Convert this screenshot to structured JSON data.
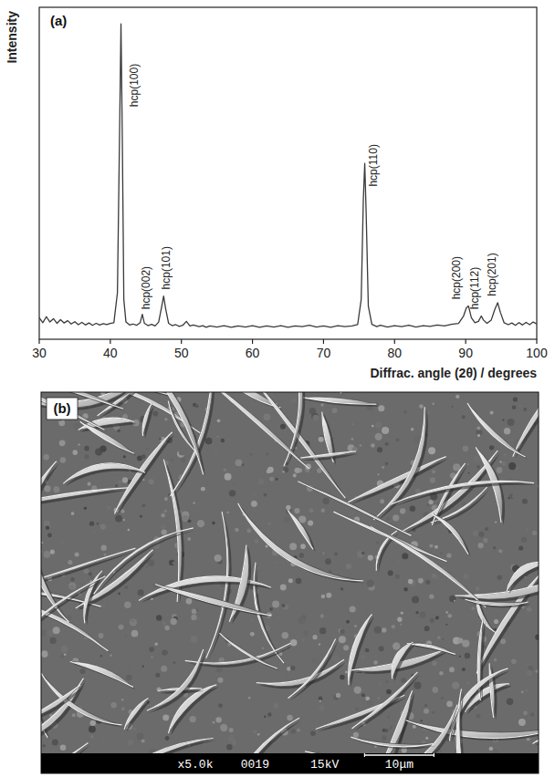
{
  "chart_data": {
    "type": "line",
    "title": "(a)",
    "x_label": "Diffrac. angle (2θ) / degrees",
    "y_label": "Intensity",
    "tick_labels": "x",
    "grid": false,
    "xlim": [
      30,
      100
    ],
    "xticks": [
      30,
      40,
      50,
      60,
      70,
      80,
      90,
      100
    ],
    "ylim": [
      0,
      100
    ],
    "x": [
      30,
      30.5,
      31,
      31.5,
      32,
      32.5,
      33,
      33.5,
      34,
      34.5,
      35,
      35.5,
      36,
      36.5,
      37,
      37.5,
      38,
      38.5,
      39,
      39.5,
      40,
      40.5,
      41,
      41.3,
      41.5,
      41.7,
      41.9,
      42.2,
      42.7,
      43.2,
      43.7,
      44.2,
      44.5,
      44.8,
      45.3,
      45.8,
      46.3,
      46.8,
      47.2,
      47.5,
      47.8,
      48.2,
      48.7,
      49.2,
      49.7,
      50.2,
      50.7,
      51.2,
      51.7,
      52.5,
      53,
      53.5,
      54,
      55,
      56,
      57,
      58,
      59,
      60,
      61,
      62,
      63,
      64,
      65,
      66,
      67,
      68,
      69,
      70,
      71,
      72,
      73,
      74,
      74.8,
      75.3,
      75.6,
      75.8,
      76,
      76.3,
      76.8,
      77.5,
      78,
      79,
      80,
      81,
      82,
      83,
      84,
      85,
      86,
      87,
      88,
      89,
      89.7,
      90.1,
      90.4,
      90.8,
      91.3,
      91.8,
      92.2,
      92.5,
      93,
      93.6,
      94.1,
      94.5,
      94.9,
      95.4,
      96,
      96.5,
      97,
      97.5,
      98,
      98.5,
      99,
      99.5,
      100
    ],
    "series": [
      {
        "color": "#3a3a3a",
        "line_style": "solid",
        "values": [
          6.5,
          5,
          6.8,
          5.2,
          6.2,
          4.8,
          5.9,
          4.9,
          5.6,
          4.6,
          5.3,
          4.4,
          5.1,
          4.3,
          4.9,
          4.2,
          4.8,
          4.3,
          4.7,
          4.4,
          4.8,
          5,
          14,
          62,
          95,
          58,
          12,
          5.2,
          4.3,
          4.6,
          4.2,
          5,
          7.5,
          4.8,
          4.1,
          4.5,
          4,
          5.2,
          9.5,
          13,
          9,
          4.8,
          4.1,
          4.4,
          3.9,
          4.2,
          5.4,
          4,
          4.3,
          3.8,
          4.1,
          3.6,
          4,
          3.7,
          4.1,
          3.6,
          4,
          3.7,
          4.1,
          3.6,
          4,
          3.7,
          4.1,
          3.6,
          4,
          3.8,
          4.2,
          3.7,
          4,
          3.6,
          4.1,
          3.8,
          4,
          4.4,
          12,
          42,
          53,
          38,
          10,
          4.5,
          3.8,
          4.2,
          3.7,
          4.1,
          3.8,
          4.2,
          3.7,
          4.1,
          3.9,
          4.3,
          4,
          4.5,
          4.8,
          7,
          9.5,
          10,
          6.5,
          5,
          5.4,
          7,
          5.8,
          4.8,
          5.8,
          9,
          11,
          8,
          5,
          4.4,
          4.9,
          4.2,
          5,
          4.3,
          5.1,
          4.4,
          5.2,
          4.6
        ]
      }
    ],
    "annotations": [
      {
        "text": "hcp(100)",
        "x": 43.3,
        "y": 70
      },
      {
        "text": "hcp(002)",
        "x": 44.9,
        "y": 9
      },
      {
        "text": "hcp(101)",
        "x": 47.8,
        "y": 15
      },
      {
        "text": "hcp(110)",
        "x": 77.0,
        "y": 46
      },
      {
        "text": "hcp(200)",
        "x": 88.6,
        "y": 12
      },
      {
        "text": "hcp(112)",
        "x": 91.2,
        "y": 9
      },
      {
        "text": "hcp(201)",
        "x": 93.6,
        "y": 13
      }
    ]
  },
  "image": {
    "label": "(b)",
    "info": [
      "x5.0k",
      "0019",
      "15kV",
      "10μm"
    ]
  }
}
